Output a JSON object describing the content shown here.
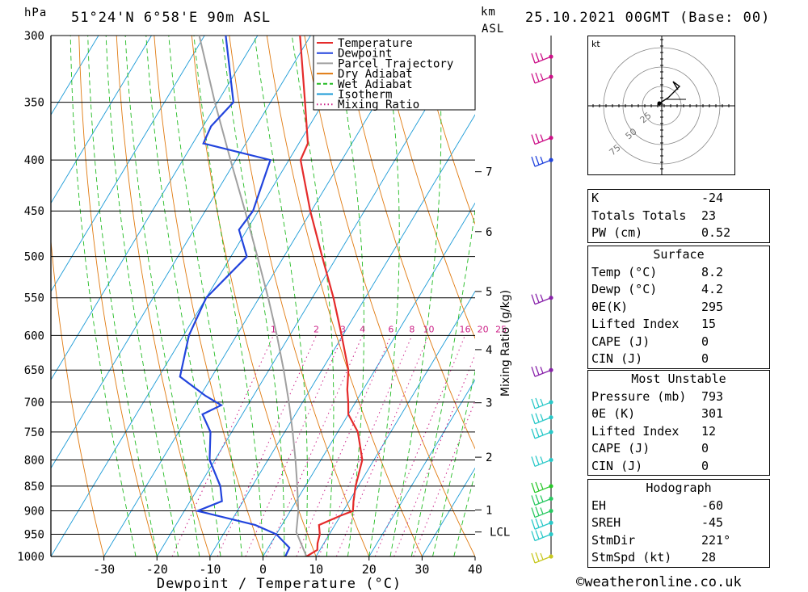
{
  "header": {
    "pressure_unit": "hPa",
    "location": "51°24'N  6°58'E  90m  ASL",
    "km_label": "km",
    "asl_label": "ASL",
    "datetime": "25.10.2021  00GMT  (Base: 00)"
  },
  "chart_data": {
    "type": "skew-t",
    "xlabel": "Dewpoint / Temperature (°C)",
    "ylabel": "hPa",
    "right_axis_label": "Mixing Ratio (g/kg)",
    "x_ticks": [
      -30,
      -20,
      -10,
      0,
      10,
      20,
      30,
      40
    ],
    "x_range": [
      -40,
      40
    ],
    "pressure_levels": [
      300,
      350,
      400,
      450,
      500,
      550,
      600,
      650,
      700,
      750,
      800,
      850,
      900,
      950,
      1000
    ],
    "km_ticks": [
      {
        "label": "7",
        "pressure": 411
      },
      {
        "label": "6",
        "pressure": 472
      },
      {
        "label": "5",
        "pressure": 542
      },
      {
        "label": "4",
        "pressure": 620
      },
      {
        "label": "3",
        "pressure": 701
      },
      {
        "label": "2",
        "pressure": 795
      },
      {
        "label": "1",
        "pressure": 898
      },
      {
        "label": "LCL",
        "pressure": 945
      }
    ],
    "mixing_ratio_labels": [
      "1",
      "2",
      "3",
      "4",
      "6",
      "8",
      "10",
      "16",
      "20",
      "25"
    ],
    "mixing_ratio_values": [
      1,
      2,
      3,
      4,
      6,
      8,
      10,
      16,
      20,
      25
    ],
    "legend": [
      {
        "name": "Temperature",
        "color": "#e52b2b",
        "style": "solid"
      },
      {
        "name": "Dewpoint",
        "color": "#2244dd",
        "style": "solid"
      },
      {
        "name": "Parcel Trajectory",
        "color": "#a0a0a0",
        "style": "solid"
      },
      {
        "name": "Dry Adiabat",
        "color": "#e07a10",
        "style": "solid"
      },
      {
        "name": "Wet Adiabat",
        "color": "#22bb22",
        "style": "dashed"
      },
      {
        "name": "Isotherm",
        "color": "#1a9ad6",
        "style": "solid"
      },
      {
        "name": "Mixing Ratio",
        "color": "#cc2288",
        "style": "dotted"
      }
    ],
    "series": [
      {
        "name": "Temperature",
        "points": [
          [
            1000,
            8.2
          ],
          [
            985,
            9.5
          ],
          [
            970,
            8.8
          ],
          [
            950,
            8.2
          ],
          [
            930,
            7.0
          ],
          [
            910,
            10.0
          ],
          [
            900,
            11.8
          ],
          [
            880,
            10.8
          ],
          [
            850,
            9.5
          ],
          [
            800,
            7.8
          ],
          [
            750,
            3.8
          ],
          [
            720,
            0.0
          ],
          [
            700,
            -1.4
          ],
          [
            680,
            -3.0
          ],
          [
            650,
            -5.0
          ],
          [
            600,
            -10.2
          ],
          [
            550,
            -16.0
          ],
          [
            500,
            -22.8
          ],
          [
            450,
            -30.2
          ],
          [
            400,
            -37.8
          ],
          [
            385,
            -38.3
          ],
          [
            350,
            -43.5
          ],
          [
            300,
            -52.0
          ]
        ]
      },
      {
        "name": "Dewpoint",
        "points": [
          [
            1000,
            4.2
          ],
          [
            980,
            4.0
          ],
          [
            950,
            0.0
          ],
          [
            930,
            -5.0
          ],
          [
            900,
            -17.5
          ],
          [
            880,
            -14.0
          ],
          [
            850,
            -16.0
          ],
          [
            800,
            -21.0
          ],
          [
            750,
            -24.0
          ],
          [
            720,
            -27.5
          ],
          [
            705,
            -25.0
          ],
          [
            690,
            -29.0
          ],
          [
            660,
            -36.0
          ],
          [
            600,
            -39.0
          ],
          [
            550,
            -40.0
          ],
          [
            500,
            -37.0
          ],
          [
            470,
            -41.5
          ],
          [
            450,
            -41.0
          ],
          [
            400,
            -43.5
          ],
          [
            385,
            -58.0
          ],
          [
            370,
            -58.5
          ],
          [
            350,
            -57.0
          ],
          [
            300,
            -66.0
          ]
        ]
      },
      {
        "name": "Parcel Trajectory",
        "points": [
          [
            1000,
            8.2
          ],
          [
            945,
            3.5
          ],
          [
            900,
            1.5
          ],
          [
            850,
            -1.5
          ],
          [
            800,
            -4.8
          ],
          [
            750,
            -8.5
          ],
          [
            700,
            -12.6
          ],
          [
            650,
            -17.2
          ],
          [
            600,
            -22.4
          ],
          [
            550,
            -28.3
          ],
          [
            500,
            -35.0
          ],
          [
            450,
            -42.5
          ],
          [
            400,
            -51.0
          ],
          [
            350,
            -60.5
          ],
          [
            300,
            -71.0
          ]
        ]
      }
    ],
    "wind_barbs": [
      {
        "pressure": 1000,
        "color": "#c8c820"
      },
      {
        "pressure": 950,
        "color": "#28c8c8"
      },
      {
        "pressure": 925,
        "color": "#28c8c8"
      },
      {
        "pressure": 900,
        "color": "#28c860"
      },
      {
        "pressure": 875,
        "color": "#28c860"
      },
      {
        "pressure": 850,
        "color": "#28c828"
      },
      {
        "pressure": 800,
        "color": "#28c8c8"
      },
      {
        "pressure": 750,
        "color": "#28c8c8"
      },
      {
        "pressure": 725,
        "color": "#28c8c8"
      },
      {
        "pressure": 700,
        "color": "#28c8c8"
      },
      {
        "pressure": 650,
        "color": "#8822aa"
      },
      {
        "pressure": 550,
        "color": "#8822aa"
      },
      {
        "pressure": 400,
        "color": "#2244dd"
      },
      {
        "pressure": 380,
        "color": "#cc1188"
      },
      {
        "pressure": 330,
        "color": "#cc1188"
      },
      {
        "pressure": 315,
        "color": "#cc1188"
      }
    ]
  },
  "hodograph": {
    "unit_label": "kt",
    "ring_labels": [
      "25",
      "50",
      "75"
    ]
  },
  "indices": {
    "rows": [
      {
        "label": "K",
        "value": "-24"
      },
      {
        "label": "Totals Totals",
        "value": "23"
      },
      {
        "label": "PW (cm)",
        "value": "0.52"
      }
    ]
  },
  "surface": {
    "title": "Surface",
    "rows": [
      {
        "label": "Temp (°C)",
        "value": "8.2"
      },
      {
        "label": "Dewp (°C)",
        "value": "4.2"
      },
      {
        "label": "θE(K)",
        "value": "295"
      },
      {
        "label": "Lifted Index",
        "value": "15"
      },
      {
        "label": "CAPE (J)",
        "value": "0"
      },
      {
        "label": "CIN (J)",
        "value": "0"
      }
    ]
  },
  "most_unstable": {
    "title": "Most Unstable",
    "rows": [
      {
        "label": "Pressure (mb)",
        "value": "793"
      },
      {
        "label": "θE (K)",
        "value": "301"
      },
      {
        "label": "Lifted Index",
        "value": "12"
      },
      {
        "label": "CAPE (J)",
        "value": "0"
      },
      {
        "label": "CIN (J)",
        "value": "0"
      }
    ]
  },
  "hodograph_table": {
    "title": "Hodograph",
    "rows": [
      {
        "label": "EH",
        "value": "-60"
      },
      {
        "label": "SREH",
        "value": "-45"
      },
      {
        "label": "StmDir",
        "value": "221°"
      },
      {
        "label": "StmSpd (kt)",
        "value": "28"
      }
    ]
  },
  "footer": {
    "credit": "©weatheronline.co.uk"
  }
}
